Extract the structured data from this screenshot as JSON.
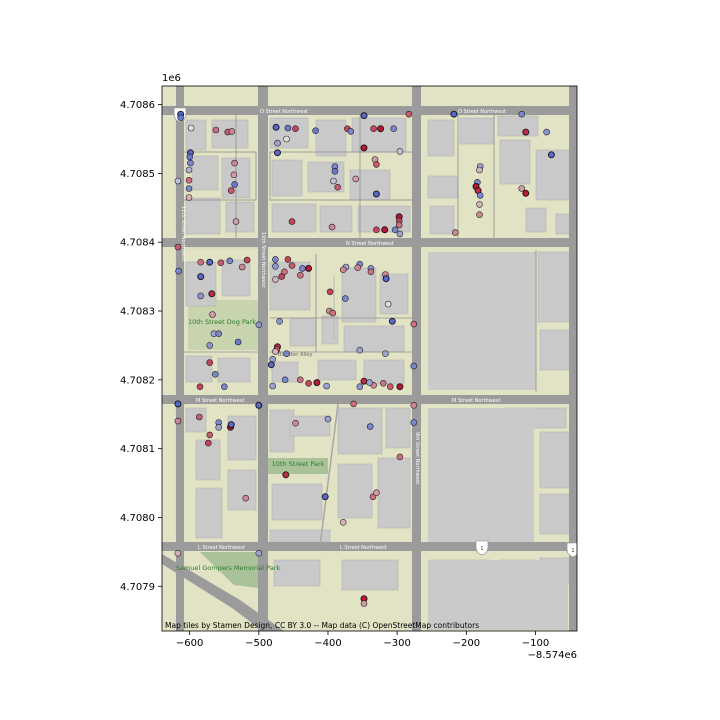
{
  "chart_data": {
    "type": "scatter",
    "basemap": "Stamen Toner-Lite style street map",
    "attribution": "Map tiles by Stamen Design, CC BY 3.0 -- Map data (C) OpenStreetMap contributors",
    "x_offset_label": "−8.574e6",
    "y_scale_label": "1e6",
    "xlim": [
      -640,
      -40
    ],
    "ylim": [
      4707835,
      4708627
    ],
    "x_ticks": [
      -600,
      -500,
      -400,
      -300,
      -200,
      -100
    ],
    "x_tick_labels": [
      "−600",
      "−500",
      "−400",
      "−300",
      "−200",
      "−100"
    ],
    "y_ticks": [
      4707900,
      4708000,
      4708100,
      4708200,
      4708300,
      4708400,
      4708500,
      4708600
    ],
    "y_tick_labels": [
      "4.7079",
      "4.7080",
      "4.7081",
      "4.7082",
      "4.7083",
      "4.7084",
      "4.7085",
      "4.7086"
    ],
    "grid": false,
    "colormap": "coolwarm (blue = low, red = high)",
    "points": [
      {
        "x": -613,
        "y": 4708586,
        "v": 0.1
      },
      {
        "x": -613,
        "y": 4708581,
        "v": 0.15
      },
      {
        "x": -598,
        "y": 4708566,
        "v": 0.5
      },
      {
        "x": -562,
        "y": 4708563,
        "v": 0.75
      },
      {
        "x": -545,
        "y": 4708560,
        "v": 0.8
      },
      {
        "x": -539,
        "y": 4708561,
        "v": 0.7
      },
      {
        "x": -475,
        "y": 4708567,
        "v": 0.1
      },
      {
        "x": -458,
        "y": 4708566,
        "v": 0.15
      },
      {
        "x": -447,
        "y": 4708565,
        "v": 0.85
      },
      {
        "x": -418,
        "y": 4708562,
        "v": 0.15
      },
      {
        "x": -372,
        "y": 4708565,
        "v": 0.85
      },
      {
        "x": -367,
        "y": 4708561,
        "v": 0.2
      },
      {
        "x": -334,
        "y": 4708565,
        "v": 0.85
      },
      {
        "x": -324,
        "y": 4708565,
        "v": 0.95
      },
      {
        "x": -305,
        "y": 4708565,
        "v": 0.2
      },
      {
        "x": -348,
        "y": 4708584,
        "v": 0.1
      },
      {
        "x": -283,
        "y": 4708586,
        "v": 0.8
      },
      {
        "x": -218,
        "y": 4708586,
        "v": 0.1
      },
      {
        "x": -120,
        "y": 4708586,
        "v": 0.2
      },
      {
        "x": -114,
        "y": 4708560,
        "v": 0.9
      },
      {
        "x": -84,
        "y": 4708560,
        "v": 0.25
      },
      {
        "x": -77,
        "y": 4708527,
        "v": 0.1
      },
      {
        "x": -473,
        "y": 4708544,
        "v": 0.3
      },
      {
        "x": -473,
        "y": 4708530,
        "v": 0.1
      },
      {
        "x": -460,
        "y": 4708550,
        "v": 0.5
      },
      {
        "x": -348,
        "y": 4708537,
        "v": 0.95
      },
      {
        "x": -296,
        "y": 4708532,
        "v": 0.4
      },
      {
        "x": -332,
        "y": 4708520,
        "v": 0.65
      },
      {
        "x": -599,
        "y": 4708530,
        "v": 0.1
      },
      {
        "x": -600,
        "y": 4708524,
        "v": 0.15
      },
      {
        "x": -599,
        "y": 4708515,
        "v": 0.2
      },
      {
        "x": -601,
        "y": 4708505,
        "v": 0.35
      },
      {
        "x": -601,
        "y": 4708490,
        "v": 0.75
      },
      {
        "x": -601,
        "y": 4708478,
        "v": 0.2
      },
      {
        "x": -601,
        "y": 4708465,
        "v": 0.6
      },
      {
        "x": -617,
        "y": 4708489,
        "v": 0.4
      },
      {
        "x": -535,
        "y": 4708515,
        "v": 0.7
      },
      {
        "x": -536,
        "y": 4708498,
        "v": 0.65
      },
      {
        "x": -535,
        "y": 4708484,
        "v": 0.15
      },
      {
        "x": -540,
        "y": 4708475,
        "v": 0.8
      },
      {
        "x": -533,
        "y": 4708430,
        "v": 0.65
      },
      {
        "x": -390,
        "y": 4708510,
        "v": 0.2
      },
      {
        "x": -390,
        "y": 4708503,
        "v": 0.15
      },
      {
        "x": -392,
        "y": 4708489,
        "v": 0.4
      },
      {
        "x": -386,
        "y": 4708480,
        "v": 0.8
      },
      {
        "x": -360,
        "y": 4708492,
        "v": 0.65
      },
      {
        "x": -330,
        "y": 4708513,
        "v": 0.8
      },
      {
        "x": -330,
        "y": 4708470,
        "v": 0.1
      },
      {
        "x": -297,
        "y": 4708437,
        "v": 0.95
      },
      {
        "x": -297,
        "y": 4708431,
        "v": 0.85
      },
      {
        "x": -297,
        "y": 4708425,
        "v": 0.75
      },
      {
        "x": -303,
        "y": 4708418,
        "v": 0.2
      },
      {
        "x": -296,
        "y": 4708412,
        "v": 0.3
      },
      {
        "x": -318,
        "y": 4708418,
        "v": 0.95
      },
      {
        "x": -330,
        "y": 4708418,
        "v": 0.85
      },
      {
        "x": -452,
        "y": 4708430,
        "v": 0.85
      },
      {
        "x": -394,
        "y": 4708422,
        "v": 0.7
      },
      {
        "x": -180,
        "y": 4708510,
        "v": 0.3
      },
      {
        "x": -181,
        "y": 4708505,
        "v": 0.6
      },
      {
        "x": -184,
        "y": 4708487,
        "v": 0.2
      },
      {
        "x": -186,
        "y": 4708481,
        "v": 0.95
      },
      {
        "x": -183,
        "y": 4708475,
        "v": 0.9
      },
      {
        "x": -180,
        "y": 4708468,
        "v": 0.2
      },
      {
        "x": -181,
        "y": 4708455,
        "v": 0.6
      },
      {
        "x": -181,
        "y": 4708440,
        "v": 0.7
      },
      {
        "x": -216,
        "y": 4708414,
        "v": 0.7
      },
      {
        "x": -120,
        "y": 4708478,
        "v": 0.65
      },
      {
        "x": -114,
        "y": 4708471,
        "v": 0.95
      },
      {
        "x": -617,
        "y": 4708393,
        "v": 0.8
      },
      {
        "x": -616,
        "y": 4708358,
        "v": 0.2
      },
      {
        "x": -584,
        "y": 4708371,
        "v": 0.75
      },
      {
        "x": -571,
        "y": 4708371,
        "v": 0.1
      },
      {
        "x": -555,
        "y": 4708370,
        "v": 0.8
      },
      {
        "x": -542,
        "y": 4708373,
        "v": 0.2
      },
      {
        "x": -517,
        "y": 4708374,
        "v": 0.85
      },
      {
        "x": -524,
        "y": 4708364,
        "v": 0.7
      },
      {
        "x": -584,
        "y": 4708322,
        "v": 0.25
      },
      {
        "x": -568,
        "y": 4708325,
        "v": 0.9
      },
      {
        "x": -567,
        "y": 4708295,
        "v": 0.65
      },
      {
        "x": -565,
        "y": 4708267,
        "v": 0.3
      },
      {
        "x": -584,
        "y": 4708350,
        "v": 0.1
      },
      {
        "x": -571,
        "y": 4708250,
        "v": 0.25
      },
      {
        "x": -558,
        "y": 4708267,
        "v": 0.2
      },
      {
        "x": -571,
        "y": 4708225,
        "v": 0.85
      },
      {
        "x": -530,
        "y": 4708255,
        "v": 0.15
      },
      {
        "x": -563,
        "y": 4708208,
        "v": 0.2
      },
      {
        "x": -585,
        "y": 4708190,
        "v": 0.85
      },
      {
        "x": -550,
        "y": 4708190,
        "v": 0.2
      },
      {
        "x": -476,
        "y": 4708375,
        "v": 0.2
      },
      {
        "x": -476,
        "y": 4708365,
        "v": 0.25
      },
      {
        "x": -458,
        "y": 4708375,
        "v": 0.85
      },
      {
        "x": -452,
        "y": 4708366,
        "v": 0.8
      },
      {
        "x": -463,
        "y": 4708357,
        "v": 0.75
      },
      {
        "x": -467,
        "y": 4708350,
        "v": 0.85
      },
      {
        "x": -476,
        "y": 4708346,
        "v": 0.6
      },
      {
        "x": -437,
        "y": 4708362,
        "v": 0.2
      },
      {
        "x": -428,
        "y": 4708362,
        "v": 0.95
      },
      {
        "x": -440,
        "y": 4708352,
        "v": 0.75
      },
      {
        "x": -354,
        "y": 4708368,
        "v": 0.2
      },
      {
        "x": -357,
        "y": 4708363,
        "v": 0.7
      },
      {
        "x": -374,
        "y": 4708364,
        "v": 0.3
      },
      {
        "x": -378,
        "y": 4708360,
        "v": 0.7
      },
      {
        "x": -338,
        "y": 4708362,
        "v": 0.25
      },
      {
        "x": -338,
        "y": 4708357,
        "v": 0.75
      },
      {
        "x": -317,
        "y": 4708353,
        "v": 0.7
      },
      {
        "x": -397,
        "y": 4708328,
        "v": 0.85
      },
      {
        "x": -375,
        "y": 4708318,
        "v": 0.2
      },
      {
        "x": -398,
        "y": 4708300,
        "v": 0.7
      },
      {
        "x": -316,
        "y": 4708347,
        "v": 0.1
      },
      {
        "x": -393,
        "y": 4708297,
        "v": 0.75
      },
      {
        "x": -313,
        "y": 4708310,
        "v": 0.5
      },
      {
        "x": -307,
        "y": 4708285,
        "v": 0.1
      },
      {
        "x": -470,
        "y": 4708285,
        "v": 0.25
      },
      {
        "x": -473,
        "y": 4708248,
        "v": 0.9
      },
      {
        "x": -474,
        "y": 4708244,
        "v": 0.8
      },
      {
        "x": -476,
        "y": 4708241,
        "v": 0.6
      },
      {
        "x": -460,
        "y": 4708238,
        "v": 0.2
      },
      {
        "x": -480,
        "y": 4708230,
        "v": 0.3
      },
      {
        "x": -482,
        "y": 4708222,
        "v": 0.1
      },
      {
        "x": -354,
        "y": 4708243,
        "v": 0.3
      },
      {
        "x": -317,
        "y": 4708238,
        "v": 0.3
      },
      {
        "x": -276,
        "y": 4708281,
        "v": 0.75
      },
      {
        "x": -500,
        "y": 4708280,
        "v": 0.25
      },
      {
        "x": -500,
        "y": 4708163,
        "v": 0.15
      },
      {
        "x": -480,
        "y": 4708191,
        "v": 0.3
      },
      {
        "x": -462,
        "y": 4708200,
        "v": 0.2
      },
      {
        "x": -440,
        "y": 4708200,
        "v": 0.75
      },
      {
        "x": -428,
        "y": 4708195,
        "v": 0.85
      },
      {
        "x": -416,
        "y": 4708196,
        "v": 0.95
      },
      {
        "x": -402,
        "y": 4708191,
        "v": 0.3
      },
      {
        "x": -354,
        "y": 4708190,
        "v": 0.25
      },
      {
        "x": -348,
        "y": 4708198,
        "v": 0.9
      },
      {
        "x": -334,
        "y": 4708192,
        "v": 0.7
      },
      {
        "x": -320,
        "y": 4708195,
        "v": 0.75
      },
      {
        "x": -310,
        "y": 4708190,
        "v": 0.8
      },
      {
        "x": -296,
        "y": 4708190,
        "v": 0.95
      },
      {
        "x": -340,
        "y": 4708196,
        "v": 0.3
      },
      {
        "x": -276,
        "y": 4708220,
        "v": 0.2
      },
      {
        "x": -363,
        "y": 4708165,
        "v": 0.75
      },
      {
        "x": -339,
        "y": 4708132,
        "v": 0.2
      },
      {
        "x": -400,
        "y": 4708143,
        "v": 0.3
      },
      {
        "x": -276,
        "y": 4708163,
        "v": 0.7
      },
      {
        "x": -276,
        "y": 4708138,
        "v": 0.2
      },
      {
        "x": -617,
        "y": 4708165,
        "v": 0.1
      },
      {
        "x": -617,
        "y": 4708140,
        "v": 0.7
      },
      {
        "x": -586,
        "y": 4708146,
        "v": 0.8
      },
      {
        "x": -558,
        "y": 4708138,
        "v": 0.2
      },
      {
        "x": -558,
        "y": 4708131,
        "v": 0.3
      },
      {
        "x": -541,
        "y": 4708131,
        "v": 0.95
      },
      {
        "x": -571,
        "y": 4708120,
        "v": 0.8
      },
      {
        "x": -573,
        "y": 4708108,
        "v": 0.85
      },
      {
        "x": -540,
        "y": 4708135,
        "v": 0.1
      },
      {
        "x": -500,
        "y": 4708163,
        "v": 0.1
      },
      {
        "x": -447,
        "y": 4708137,
        "v": 0.7
      },
      {
        "x": -461,
        "y": 4708062,
        "v": 0.9
      },
      {
        "x": -519,
        "y": 4708028,
        "v": 0.7
      },
      {
        "x": -404,
        "y": 4708030,
        "v": 0.1
      },
      {
        "x": -335,
        "y": 4708030,
        "v": 0.75
      },
      {
        "x": -330,
        "y": 4708036,
        "v": 0.65
      },
      {
        "x": -296,
        "y": 4708088,
        "v": 0.75
      },
      {
        "x": -500,
        "y": 4707948,
        "v": 0.3
      },
      {
        "x": -617,
        "y": 4707948,
        "v": 0.6
      },
      {
        "x": -378,
        "y": 4707993,
        "v": 0.6
      },
      {
        "x": -348,
        "y": 4707882,
        "v": 0.95
      },
      {
        "x": -348,
        "y": 4707875,
        "v": 0.65
      }
    ]
  },
  "map_labels": {
    "street_top": "O  Street  Northwest",
    "street_top_right": "O  Street  Northwest",
    "street_n": "N  Street  Northwest",
    "street_m": "M  Street  Northwest",
    "street_m_right": "M  Street  Northwest",
    "street_l_left": "L  Street  Northwest",
    "street_l_mid": "L  Street  Northwest",
    "ave_11th": "11th Street Northwest",
    "ave_10th": "10th Street Northwest",
    "ave_9th": "9th Street Northwest",
    "alley": "Blagden Alley",
    "park_dog": "10th Street Dog Park",
    "park_10th": "10th Street Park",
    "park_gompers": "Samuel Gompers Memorial Park",
    "shield_1": "29",
    "shield_2": "1",
    "shield_3": "1"
  },
  "colors": {
    "land": "#e2e2c4",
    "road": "#9b9b9b",
    "building": "#c9c9c9",
    "building_outline": "#b5b5b5",
    "park": "#a9c29a",
    "big_block": "#cacaca"
  }
}
